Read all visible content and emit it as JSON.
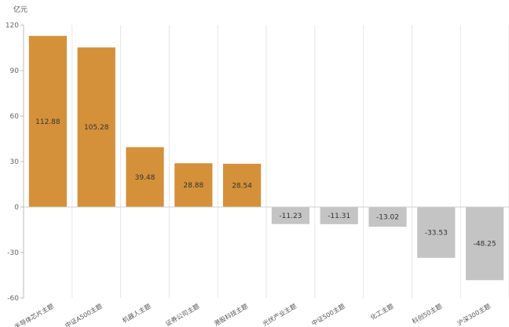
{
  "chart_data": {
    "type": "bar",
    "unit_label": "亿元",
    "ylim": [
      -60,
      120
    ],
    "yticks": [
      "120",
      "90",
      "60",
      "30",
      "0",
      "-30",
      "-60"
    ],
    "categories": [
      "半导体芯片主题",
      "中证A500主题",
      "机器人主题",
      "证券公司主题",
      "港股科技主题",
      "光伏产业主题",
      "中证500主题",
      "化工主题",
      "科创50主题",
      "沪深300主题"
    ],
    "values": [
      112.88,
      105.28,
      39.48,
      28.88,
      28.54,
      -11.23,
      -11.31,
      -13.02,
      -33.53,
      -48.25
    ],
    "value_labels": [
      "112.88",
      "105.28",
      "39.48",
      "28.88",
      "28.54",
      "-11.23",
      "-11.31",
      "-13.02",
      "-33.53",
      "-48.25"
    ],
    "grid": true,
    "colors": {
      "positive": "#D4913A",
      "negative": "#C4C4C4"
    }
  }
}
